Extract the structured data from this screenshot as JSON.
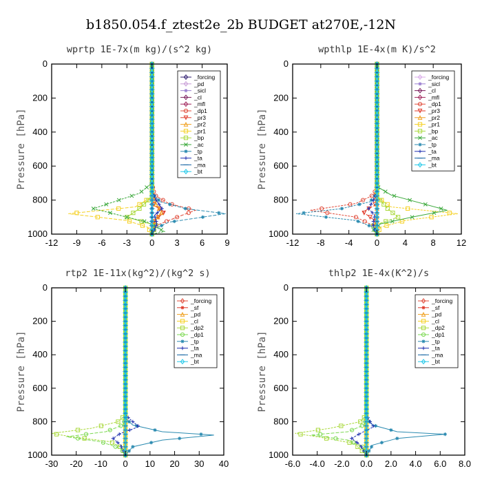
{
  "main_title": "b1850.054.f_ztest2e_2b  BUDGET at270E,-12N",
  "chart_data": [
    {
      "type": "line",
      "title": "wprtp   1E-7x(m kg)/(s^2 kg)",
      "ylabel": "Pressure [hPa]",
      "xlim": [
        -12,
        9
      ],
      "xticks": [
        -12,
        -9,
        -6,
        -3,
        0,
        3,
        6,
        9
      ],
      "xtick_labels": [
        "-12",
        "-9",
        "-6",
        "-3",
        "0",
        "3",
        "6",
        "9"
      ],
      "ylim": [
        0,
        1000
      ],
      "yticks": [
        0,
        200,
        400,
        600,
        800,
        1000
      ],
      "legend_position": "top-right",
      "series": [
        {
          "name": "_forcing",
          "color": "#2b1a6e",
          "marker": "diamond",
          "x": [
            0,
            0,
            0,
            0,
            0
          ],
          "y": [
            0,
            250,
            500,
            750,
            1000
          ]
        },
        {
          "name": "_pd",
          "color": "#c79bd6",
          "marker": "diamond",
          "x": [
            0,
            0,
            0,
            0,
            0
          ],
          "y": [
            0,
            250,
            500,
            750,
            1000
          ]
        },
        {
          "name": "_sicl",
          "color": "#9a7fd0",
          "marker": "star",
          "x": [
            0,
            0,
            0,
            0,
            0
          ],
          "y": [
            0,
            250,
            500,
            750,
            1000
          ]
        },
        {
          "name": "_cl",
          "color": "#7a1d5c",
          "marker": "diamond",
          "x": [
            0,
            0,
            0,
            0,
            0
          ],
          "y": [
            0,
            250,
            500,
            750,
            1000
          ]
        },
        {
          "name": "_mfl",
          "color": "#a0235a",
          "marker": "diamond",
          "x": [
            0,
            0,
            0,
            0,
            0
          ],
          "y": [
            0,
            250,
            500,
            750,
            1000
          ]
        },
        {
          "name": "_dp1",
          "color": "#e04b3a",
          "marker": "circle",
          "x": [
            0,
            0,
            0.3,
            2,
            5.2,
            3,
            0.5,
            0
          ],
          "y": [
            0,
            700,
            770,
            820,
            860,
            900,
            950,
            1000
          ]
        },
        {
          "name": "_pr3",
          "color": "#e03a2a",
          "marker": "triangle-down",
          "x": [
            0,
            0,
            0.2,
            1.5,
            0.3,
            0
          ],
          "y": [
            0,
            750,
            830,
            870,
            920,
            1000
          ]
        },
        {
          "name": "_pr2",
          "color": "#f0a020",
          "marker": "triangle-up",
          "x": [
            0,
            0,
            0.5,
            1.2,
            0.2,
            0
          ],
          "y": [
            0,
            750,
            830,
            870,
            930,
            1000
          ]
        },
        {
          "name": "_pr1",
          "color": "#f5d020",
          "marker": "square",
          "x": [
            0,
            0,
            -2,
            -10,
            -3,
            -0.5,
            0
          ],
          "y": [
            0,
            780,
            840,
            880,
            920,
            960,
            1000
          ]
        },
        {
          "name": "_bp",
          "color": "#a8d838",
          "marker": "square",
          "x": [
            0,
            0,
            -1.5,
            -3,
            0.5,
            0
          ],
          "y": [
            0,
            780,
            850,
            900,
            950,
            1000
          ]
        },
        {
          "name": "_ac",
          "color": "#3aa83a",
          "marker": "cross",
          "x": [
            0,
            0,
            -1.5,
            -7,
            -3,
            -0.5,
            0.5,
            1.5,
            0
          ],
          "y": [
            0,
            700,
            760,
            850,
            900,
            930,
            960,
            985,
            1000
          ]
        },
        {
          "name": "_tp",
          "color": "#2a8ab0",
          "marker": "asterisk",
          "x": [
            0,
            0,
            1,
            4,
            8.8,
            2,
            0.3,
            0
          ],
          "y": [
            0,
            760,
            810,
            850,
            880,
            930,
            970,
            1000
          ]
        },
        {
          "name": "_ta",
          "color": "#2030b0",
          "marker": "plus",
          "x": [
            0,
            0,
            0.5,
            1.2,
            0.3,
            0.6,
            0
          ],
          "y": [
            0,
            750,
            800,
            850,
            890,
            940,
            1000
          ]
        },
        {
          "name": "_ma",
          "color": "#1060a0",
          "marker": "dash",
          "x": [
            0,
            0,
            0
          ],
          "y": [
            0,
            500,
            1000
          ]
        },
        {
          "name": "_bt",
          "color": "#20c8e8",
          "marker": "diamond",
          "x": [
            0,
            0,
            0
          ],
          "y": [
            0,
            500,
            1000
          ]
        }
      ]
    },
    {
      "type": "line",
      "title": "wpthlp   1E-4x(m K)/s^2",
      "ylabel": "Pressure [hPa]",
      "xlim": [
        -12,
        12
      ],
      "xticks": [
        -12,
        -8,
        -4,
        0,
        4,
        8,
        12
      ],
      "xtick_labels": [
        "-12",
        "-8",
        "-4",
        "0",
        "4",
        "8",
        "12"
      ],
      "ylim": [
        0,
        1000
      ],
      "yticks": [
        0,
        200,
        400,
        600,
        800,
        1000
      ],
      "legend_position": "top-right",
      "series": [
        {
          "name": "_forcing",
          "color": "#d8a8e8",
          "marker": "diamond",
          "x": [
            0,
            0,
            0
          ],
          "y": [
            0,
            500,
            1000
          ]
        },
        {
          "name": "_sicl",
          "color": "#9a7fd0",
          "marker": "star",
          "x": [
            0,
            0,
            0
          ],
          "y": [
            0,
            500,
            1000
          ]
        },
        {
          "name": "_cl",
          "color": "#7a1d5c",
          "marker": "diamond",
          "x": [
            0,
            0,
            0
          ],
          "y": [
            0,
            500,
            1000
          ]
        },
        {
          "name": "_mfl",
          "color": "#a0235a",
          "marker": "diamond",
          "x": [
            0,
            0,
            0
          ],
          "y": [
            0,
            500,
            1000
          ]
        },
        {
          "name": "_dp1",
          "color": "#e04b3a",
          "marker": "circle",
          "x": [
            0,
            0,
            -0.5,
            -3,
            -9.5,
            -3,
            -0.5,
            0
          ],
          "y": [
            0,
            720,
            770,
            820,
            860,
            900,
            950,
            1000
          ]
        },
        {
          "name": "_pr3",
          "color": "#e03a2a",
          "marker": "triangle-down",
          "x": [
            0,
            0,
            -0.3,
            -2,
            -0.3,
            0
          ],
          "y": [
            0,
            750,
            830,
            870,
            920,
            1000
          ]
        },
        {
          "name": "_pr2",
          "color": "#f0a020",
          "marker": "triangle-up",
          "x": [
            0,
            0,
            0,
            0
          ],
          "y": [
            0,
            500,
            900,
            1000
          ]
        },
        {
          "name": "_pr1",
          "color": "#f5d020",
          "marker": "square",
          "x": [
            0,
            0,
            2,
            11.5,
            4,
            0.5,
            0
          ],
          "y": [
            0,
            780,
            840,
            880,
            920,
            960,
            1000
          ]
        },
        {
          "name": "_bp",
          "color": "#a8d838",
          "marker": "square",
          "x": [
            0,
            0,
            1.5,
            3,
            -0.5,
            0
          ],
          "y": [
            0,
            780,
            850,
            900,
            950,
            1000
          ]
        },
        {
          "name": "_ac",
          "color": "#3aa83a",
          "marker": "cross",
          "x": [
            0,
            0,
            2,
            10,
            5,
            0.5,
            -0.5,
            0
          ],
          "y": [
            0,
            720,
            770,
            860,
            900,
            940,
            975,
            1000
          ]
        },
        {
          "name": "_tp",
          "color": "#2a8ab0",
          "marker": "asterisk",
          "x": [
            0,
            0,
            -1,
            -5,
            -11.5,
            -3,
            -0.5,
            0
          ],
          "y": [
            0,
            760,
            810,
            850,
            880,
            920,
            960,
            1000
          ]
        },
        {
          "name": "_ta",
          "color": "#2030b0",
          "marker": "plus",
          "x": [
            0,
            0,
            -0.5,
            -1.2,
            -0.3,
            -0.6,
            0
          ],
          "y": [
            0,
            750,
            800,
            850,
            890,
            940,
            1000
          ]
        },
        {
          "name": "_ma",
          "color": "#1060a0",
          "marker": "dash",
          "x": [
            0,
            0,
            0
          ],
          "y": [
            0,
            500,
            1000
          ]
        },
        {
          "name": "_bt",
          "color": "#20c8e8",
          "marker": "diamond",
          "x": [
            0,
            0,
            0
          ],
          "y": [
            0,
            500,
            1000
          ]
        }
      ]
    },
    {
      "type": "line",
      "title": "rtp2   1E-11x(kg^2)/(kg^2 s)",
      "ylabel": "Pressure [hPa]",
      "xlim": [
        -30,
        40
      ],
      "xticks": [
        -30,
        -20,
        -10,
        0,
        10,
        20,
        30,
        40
      ],
      "xtick_labels": [
        "-30",
        "-20",
        "-10",
        "0",
        "10",
        "20",
        "30",
        "40"
      ],
      "ylim": [
        0,
        1000
      ],
      "yticks": [
        0,
        200,
        400,
        600,
        800,
        1000
      ],
      "legend_position": "top-right",
      "series": [
        {
          "name": "_forcing",
          "color": "#e04b3a",
          "marker": "diamond",
          "x": [
            0,
            0,
            0
          ],
          "y": [
            0,
            500,
            1000
          ]
        },
        {
          "name": "_sf",
          "color": "#e03a2a",
          "marker": "star",
          "x": [
            0,
            0,
            0
          ],
          "y": [
            0,
            500,
            1000
          ]
        },
        {
          "name": "_pd",
          "color": "#f0a020",
          "marker": "triangle-up",
          "x": [
            0,
            0,
            0
          ],
          "y": [
            0,
            500,
            1000
          ]
        },
        {
          "name": "_cl",
          "color": "#f5d020",
          "marker": "square",
          "x": [
            0,
            0,
            0
          ],
          "y": [
            0,
            500,
            1000
          ]
        },
        {
          "name": "_dp2",
          "color": "#a8d838",
          "marker": "square",
          "x": [
            0,
            0,
            -3,
            -14,
            -30,
            -22,
            -6,
            -1,
            0
          ],
          "y": [
            0,
            760,
            800,
            840,
            870,
            890,
            920,
            960,
            1000
          ]
        },
        {
          "name": "_dp1",
          "color": "#7ad850",
          "marker": "circle",
          "x": [
            0,
            0,
            -1,
            -8,
            -24,
            -10,
            -2,
            0
          ],
          "y": [
            0,
            780,
            820,
            860,
            890,
            920,
            960,
            1000
          ]
        },
        {
          "name": "_tp",
          "color": "#2a8ab0",
          "marker": "asterisk",
          "x": [
            0,
            0,
            3,
            15,
            36,
            15,
            3,
            0
          ],
          "y": [
            0,
            780,
            820,
            860,
            880,
            910,
            950,
            1000
          ]
        },
        {
          "name": "_ta",
          "color": "#2030b0",
          "marker": "plus",
          "x": [
            0,
            0,
            3,
            5.5,
            -2,
            -5,
            -2,
            0
          ],
          "y": [
            0,
            760,
            800,
            830,
            870,
            900,
            940,
            1000
          ]
        },
        {
          "name": "_ma",
          "color": "#1060a0",
          "marker": "dash",
          "x": [
            0,
            0,
            0
          ],
          "y": [
            0,
            500,
            1000
          ]
        },
        {
          "name": "_bt",
          "color": "#20c8e8",
          "marker": "diamond",
          "x": [
            0,
            0,
            0
          ],
          "y": [
            0,
            500,
            1000
          ]
        }
      ]
    },
    {
      "type": "line",
      "title": "thlp2   1E-4x(K^2)/s",
      "ylabel": "Pressure [hPa]",
      "xlim": [
        -6,
        8
      ],
      "xticks": [
        -6,
        -4,
        -2,
        0,
        2,
        4,
        6,
        8
      ],
      "xtick_labels": [
        "-6.0",
        "-4.0",
        "-2.0",
        "0.0",
        "2.0",
        "4.0",
        "6.0",
        "8.0"
      ],
      "ylim": [
        0,
        1000
      ],
      "yticks": [
        0,
        200,
        400,
        600,
        800,
        1000
      ],
      "legend_position": "top-right",
      "series": [
        {
          "name": "_forcing",
          "color": "#e04b3a",
          "marker": "diamond",
          "x": [
            0,
            0,
            0
          ],
          "y": [
            0,
            500,
            1000
          ]
        },
        {
          "name": "_sf",
          "color": "#e03a2a",
          "marker": "star",
          "x": [
            0,
            0,
            0
          ],
          "y": [
            0,
            500,
            1000
          ]
        },
        {
          "name": "_pd",
          "color": "#f0a020",
          "marker": "triangle-up",
          "x": [
            0,
            0,
            0
          ],
          "y": [
            0,
            500,
            1000
          ]
        },
        {
          "name": "_cl",
          "color": "#f5d020",
          "marker": "square",
          "x": [
            0,
            0,
            0
          ],
          "y": [
            0,
            500,
            1000
          ]
        },
        {
          "name": "_dp2",
          "color": "#a8d838",
          "marker": "square",
          "x": [
            0,
            0,
            -0.5,
            -3,
            -5.8,
            -4,
            -1,
            0
          ],
          "y": [
            0,
            760,
            800,
            840,
            870,
            890,
            930,
            1000
          ]
        },
        {
          "name": "_dp1",
          "color": "#7ad850",
          "marker": "circle",
          "x": [
            0,
            0,
            -0.2,
            -1.5,
            -4.5,
            -1.5,
            -0.3,
            0
          ],
          "y": [
            0,
            780,
            820,
            860,
            880,
            910,
            950,
            1000
          ]
        },
        {
          "name": "_tp",
          "color": "#2a8ab0",
          "marker": "asterisk",
          "x": [
            0,
            0,
            0.5,
            2.5,
            6.4,
            2.5,
            0.5,
            0
          ],
          "y": [
            0,
            780,
            820,
            860,
            875,
            900,
            940,
            1000
          ]
        },
        {
          "name": "_ta",
          "color": "#2030b0",
          "marker": "plus",
          "x": [
            0,
            0,
            0.3,
            0.6,
            -0.5,
            -1.2,
            -0.5,
            0
          ],
          "y": [
            0,
            760,
            800,
            830,
            870,
            900,
            940,
            1000
          ]
        },
        {
          "name": "_ma",
          "color": "#1060a0",
          "marker": "dash",
          "x": [
            0,
            0,
            0
          ],
          "y": [
            0,
            500,
            1000
          ]
        },
        {
          "name": "_bt",
          "color": "#20c8e8",
          "marker": "diamond",
          "x": [
            0,
            0,
            0
          ],
          "y": [
            0,
            500,
            1000
          ]
        }
      ]
    }
  ]
}
